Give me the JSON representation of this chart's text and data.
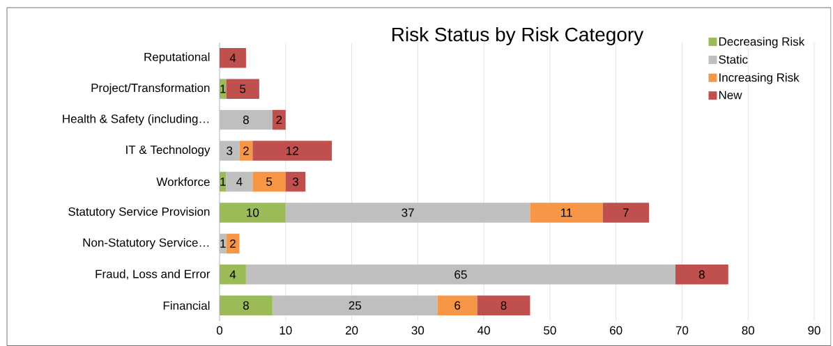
{
  "chart_data": {
    "type": "bar",
    "orientation": "horizontal",
    "stacked": true,
    "title": "Risk Status by Risk Category",
    "categories": [
      "Reputational",
      "Project/Transformation",
      "Health & Safety (including…",
      "IT & Technology",
      "Workforce",
      "Statutory Service Provision",
      "Non-Statutory Service…",
      "Fraud, Loss and Error",
      "Financial"
    ],
    "series": [
      {
        "name": "Decreasing Risk",
        "color": "#9bbb59",
        "values": [
          null,
          1,
          null,
          null,
          1,
          10,
          null,
          4,
          8
        ]
      },
      {
        "name": "Static",
        "color": "#bfbfbf",
        "values": [
          null,
          null,
          8,
          3,
          4,
          37,
          1,
          65,
          25
        ]
      },
      {
        "name": "Increasing Risk",
        "color": "#f79646",
        "values": [
          null,
          null,
          null,
          2,
          5,
          11,
          2,
          null,
          6
        ]
      },
      {
        "name": "New",
        "color": "#c0504d",
        "values": [
          4,
          5,
          2,
          12,
          3,
          7,
          null,
          8,
          8
        ]
      }
    ],
    "xlim": [
      0,
      90
    ],
    "xticks": [
      0,
      10,
      20,
      30,
      40,
      50,
      60,
      70,
      80,
      90
    ],
    "grid": "x",
    "legend": "top right",
    "data_labels": true
  }
}
